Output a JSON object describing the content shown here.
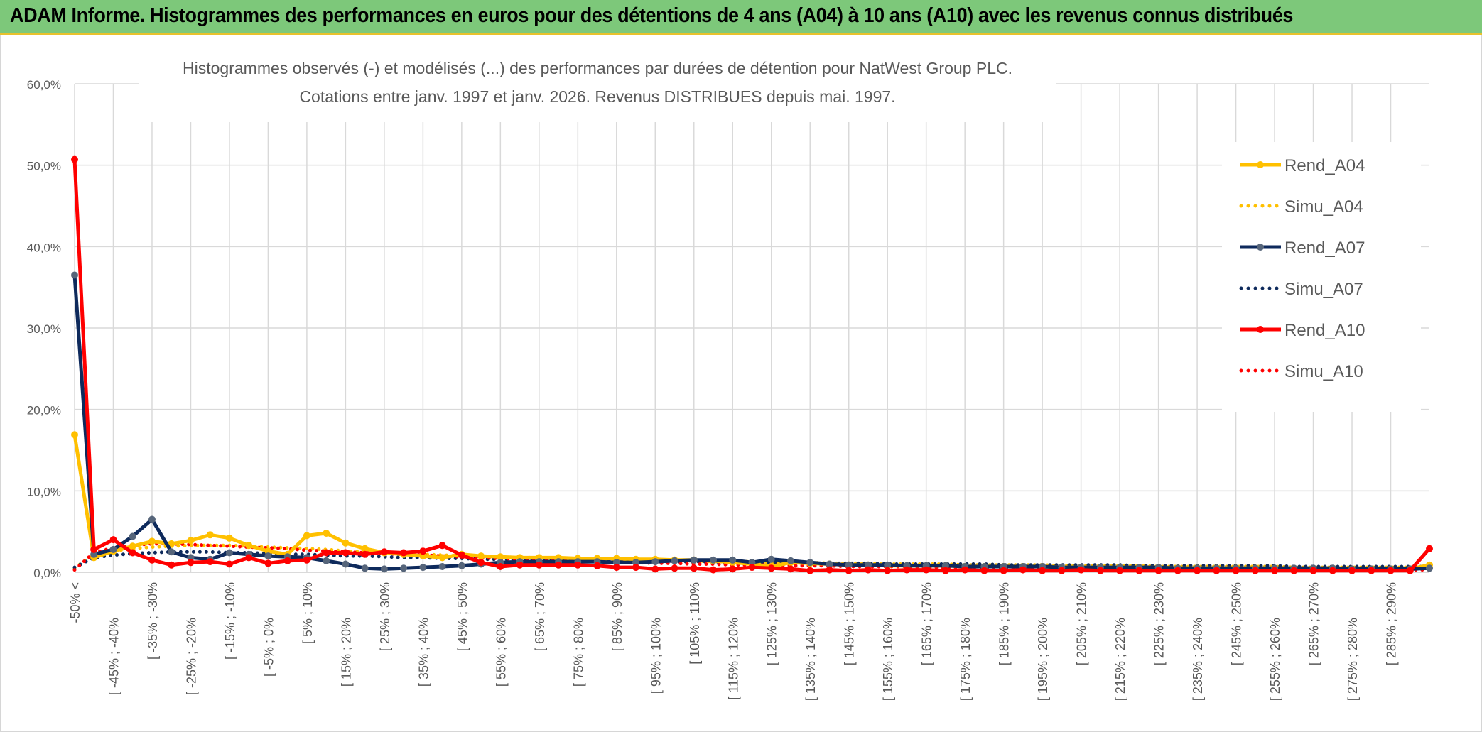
{
  "banner": {
    "title": "ADAM Informe. Histogrammes des performances en euros pour des détentions de 4 ans (A04) à 10 ans (A10) avec les revenus connus distribués"
  },
  "colors": {
    "banner_bg": "#7dc87a",
    "banner_border": "#e8c12c",
    "a04": "#ffc000",
    "a07": "#0e2a5c",
    "a07_marker": "#56657a",
    "a10": "#ff0000",
    "grid": "#d9d9d9"
  },
  "chart_data": {
    "type": "line",
    "title_line1": "Histogrammes observés (-) et modélisés (...) des performances par durées de détention pour NatWest Group PLC.",
    "title_line2": "Cotations entre janv. 1997 et janv. 2026. Revenus DISTRIBUES depuis mai. 1997.",
    "xlabel": "",
    "ylabel": "",
    "ylim": [
      0,
      60
    ],
    "y_ticks": [
      "0,0%",
      "10,0%",
      "20,0%",
      "30,0%",
      "40,0%",
      "50,0%",
      "60,0%"
    ],
    "x_labels": [
      "-50% <",
      "[ -45% ; -40%",
      "[ -35% ; -30%",
      "[ -25% ; -20%",
      "[ -15% ; -10%",
      "[ -5% ; 0%",
      "[ 5% ; 10%",
      "[ 15% ; 20%",
      "[ 25% ; 30%",
      "[ 35% ; 40%",
      "[ 45% ; 50%",
      "[ 55% ; 60%",
      "[ 65% ; 70%",
      "[ 75% ; 80%",
      "[ 85% ; 90%",
      "[ 95% ; 100%",
      "[ 105% ; 110%",
      "[ 115% ; 120%",
      "[ 125% ; 130%",
      "[ 135% ; 140%",
      "[ 145% ; 150%",
      "[ 155% ; 160%",
      "[ 165% ; 170%",
      "[ 175% ; 180%",
      "[ 185% ; 190%",
      "[ 195% ; 200%",
      "[ 205% ; 210%",
      "[ 215% ; 220%",
      "[ 225% ; 230%",
      "[ 235% ; 240%",
      "[ 245% ; 250%",
      "[ 255% ; 260%",
      "[ 265% ; 270%",
      "[ 275% ; 280%",
      "[ 285% ; 290%"
    ],
    "n_bins": 71,
    "legend_position": "right",
    "series": [
      {
        "name": "Rend_A04",
        "style": "solid",
        "color": "#ffc000",
        "values": [
          16.9,
          1.8,
          2.6,
          3.2,
          3.8,
          3.5,
          3.9,
          4.6,
          4.2,
          3.3,
          2.6,
          2.2,
          4.5,
          4.8,
          3.6,
          2.9,
          2.4,
          2.2,
          2.0,
          1.8,
          2.2,
          2.0,
          1.9,
          1.8,
          1.8,
          1.8,
          1.7,
          1.7,
          1.7,
          1.6,
          1.6,
          1.5,
          1.5,
          1.4,
          1.2,
          1.0,
          0.7,
          1.2,
          1.1,
          1.0,
          0.9,
          0.9,
          0.8,
          0.8,
          0.8,
          0.8,
          0.7,
          0.7,
          0.7,
          0.7,
          0.7,
          0.6,
          0.6,
          0.6,
          0.6,
          0.6,
          0.6,
          0.5,
          0.5,
          0.5,
          0.5,
          0.5,
          0.4,
          0.4,
          0.4,
          0.4,
          0.4,
          0.4,
          0.4,
          0.4,
          0.9
        ]
      },
      {
        "name": "Simu_A04",
        "style": "dotted",
        "color": "#ffc000",
        "values": [
          0.5,
          2.2,
          2.6,
          2.9,
          3.1,
          3.2,
          3.3,
          3.3,
          3.3,
          3.2,
          3.1,
          3.0,
          2.9,
          2.8,
          2.6,
          2.5,
          2.4,
          2.3,
          2.2,
          2.1,
          2.0,
          2.0,
          1.9,
          1.8,
          1.8,
          1.7,
          1.7,
          1.6,
          1.6,
          1.5,
          1.5,
          1.4,
          1.4,
          1.3,
          1.3,
          1.3,
          1.2,
          1.2,
          1.2,
          1.1,
          1.1,
          1.1,
          1.0,
          1.0,
          1.0,
          1.0,
          0.9,
          0.9,
          0.9,
          0.9,
          0.9,
          0.8,
          0.8,
          0.8,
          0.8,
          0.8,
          0.7,
          0.7,
          0.7,
          0.7,
          0.7,
          0.7,
          0.7,
          0.6,
          0.6,
          0.6,
          0.6,
          0.6,
          0.6,
          0.6,
          0.6
        ]
      },
      {
        "name": "Rend_A07",
        "style": "solid",
        "color": "#0e2a5c",
        "values": [
          36.5,
          2.2,
          2.8,
          4.4,
          6.5,
          2.5,
          1.8,
          1.6,
          2.4,
          2.2,
          2.0,
          1.9,
          1.8,
          1.4,
          1.0,
          0.5,
          0.4,
          0.5,
          0.6,
          0.7,
          0.8,
          1.0,
          1.2,
          1.3,
          1.3,
          1.3,
          1.3,
          1.3,
          1.2,
          1.2,
          1.3,
          1.4,
          1.5,
          1.5,
          1.5,
          1.2,
          1.6,
          1.4,
          1.2,
          1.0,
          0.9,
          0.9,
          0.9,
          0.8,
          0.8,
          0.8,
          0.7,
          0.7,
          0.7,
          0.7,
          0.7,
          0.6,
          0.6,
          0.6,
          0.6,
          0.6,
          0.6,
          0.5,
          0.5,
          0.5,
          0.5,
          0.5,
          0.5,
          0.5,
          0.5,
          0.5,
          0.4,
          0.4,
          0.4,
          0.4,
          0.5
        ]
      },
      {
        "name": "Simu_A07",
        "style": "dotted",
        "color": "#0e2a5c",
        "values": [
          0.6,
          1.8,
          2.1,
          2.3,
          2.4,
          2.5,
          2.5,
          2.5,
          2.4,
          2.4,
          2.3,
          2.2,
          2.2,
          2.1,
          2.0,
          2.0,
          1.9,
          1.8,
          1.8,
          1.7,
          1.7,
          1.6,
          1.6,
          1.6,
          1.5,
          1.5,
          1.5,
          1.4,
          1.4,
          1.4,
          1.3,
          1.3,
          1.3,
          1.3,
          1.2,
          1.2,
          1.2,
          1.2,
          1.1,
          1.1,
          1.1,
          1.1,
          1.0,
          1.0,
          1.0,
          1.0,
          1.0,
          1.0,
          0.9,
          0.9,
          0.9,
          0.9,
          0.9,
          0.9,
          0.9,
          0.8,
          0.8,
          0.8,
          0.8,
          0.8,
          0.8,
          0.8,
          0.8,
          0.7,
          0.7,
          0.7,
          0.7,
          0.7,
          0.7,
          0.7,
          0.7
        ]
      },
      {
        "name": "Rend_A10",
        "style": "solid",
        "color": "#ff0000",
        "values": [
          50.7,
          2.8,
          4.0,
          2.4,
          1.5,
          0.9,
          1.2,
          1.3,
          1.0,
          1.8,
          1.1,
          1.4,
          1.5,
          2.4,
          2.4,
          2.2,
          2.5,
          2.4,
          2.6,
          3.3,
          2.1,
          1.2,
          0.7,
          0.9,
          0.9,
          0.9,
          0.9,
          0.8,
          0.6,
          0.6,
          0.4,
          0.5,
          0.5,
          0.3,
          0.4,
          0.6,
          0.5,
          0.4,
          0.2,
          0.3,
          0.2,
          0.3,
          0.2,
          0.3,
          0.3,
          0.2,
          0.3,
          0.2,
          0.2,
          0.3,
          0.2,
          0.2,
          0.3,
          0.2,
          0.2,
          0.2,
          0.2,
          0.2,
          0.2,
          0.2,
          0.2,
          0.2,
          0.2,
          0.2,
          0.2,
          0.2,
          0.2,
          0.2,
          0.2,
          0.2,
          2.9
        ]
      },
      {
        "name": "Simu_A10",
        "style": "dotted",
        "color": "#ff0000",
        "values": [
          0.3,
          2.4,
          3.0,
          3.3,
          3.5,
          3.5,
          3.4,
          3.3,
          3.2,
          3.1,
          3.0,
          2.9,
          2.7,
          2.6,
          2.5,
          2.4,
          2.3,
          2.2,
          2.1,
          2.0,
          1.9,
          1.8,
          1.7,
          1.6,
          1.5,
          1.4,
          1.4,
          1.3,
          1.2,
          1.2,
          1.1,
          1.1,
          1.0,
          1.0,
          0.9,
          0.9,
          0.9,
          0.8,
          0.8,
          0.8,
          0.7,
          0.7,
          0.7,
          0.7,
          0.6,
          0.6,
          0.6,
          0.6,
          0.6,
          0.5,
          0.5,
          0.5,
          0.5,
          0.5,
          0.5,
          0.5,
          0.4,
          0.4,
          0.4,
          0.4,
          0.4,
          0.4,
          0.4,
          0.4,
          0.4,
          0.4,
          0.4,
          0.3,
          0.3,
          0.3,
          0.3
        ]
      }
    ]
  }
}
